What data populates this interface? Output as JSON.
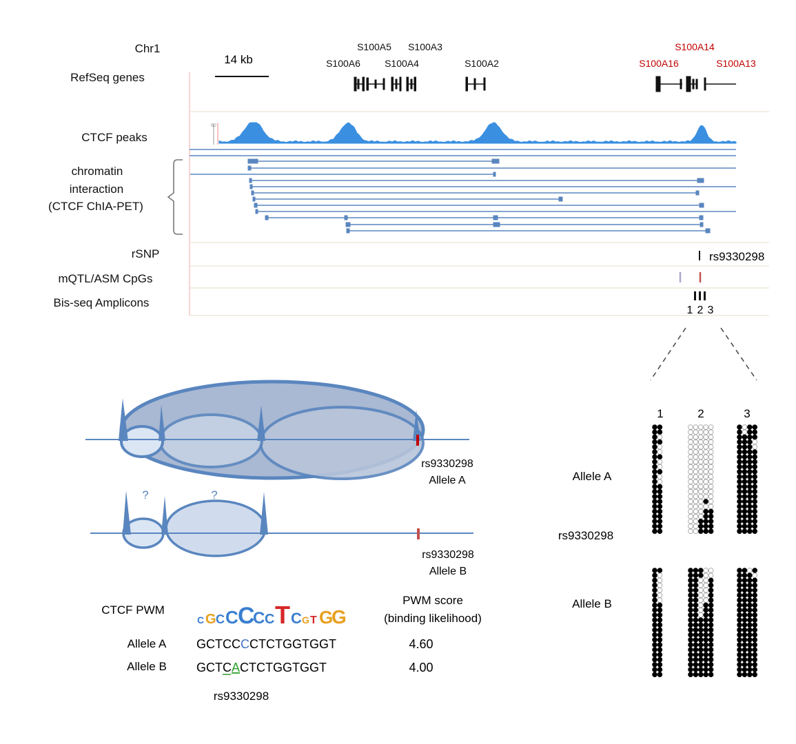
{
  "browser": {
    "chrom_label": "Chr1",
    "track_labels": {
      "refseq": "RefSeq genes",
      "ctcf": "CTCF peaks",
      "chia_line1": "chromatin",
      "chia_line2": "interaction",
      "chia_line3": "(CTCF ChIA-PET)",
      "rsnp": "rSNP",
      "mqtl": "mQTL/ASM CpGs",
      "bisseq": "Bis-seq Amplicons"
    },
    "scale_label": "14 kb",
    "genes": {
      "s100a5": "S100A5",
      "s100a3": "S100A3",
      "s100a6": "S100A6",
      "s100a4": "S100A4",
      "s100a2": "S100A2",
      "s100a14": "S100A14",
      "s100a16": "S100A16",
      "s100a13": "S100A13"
    },
    "rsnp_label": "rs9330298",
    "amplicon_numbers": [
      "1",
      "2",
      "3"
    ]
  },
  "model": {
    "allele_a_snp": "rs9330298",
    "allele_a_label": "Allele  A",
    "allele_b_snp": "rs9330298",
    "allele_b_label": "Allele  B",
    "question_marks": [
      "?",
      "?"
    ]
  },
  "pwm": {
    "title": "CTCF PWM",
    "logo": "CGCCCCCTCGTGG",
    "score_header_line1": "PWM score",
    "score_header_line2": "(binding likelihood)",
    "allele_a": {
      "label": "Allele A",
      "seq_pre": "GCTCC",
      "seq_var": "C",
      "seq_post": "CTCTGGTGGT",
      "score": "4.60"
    },
    "allele_b": {
      "label": "Allele B",
      "seq_pre": "GCTC",
      "seq_var": "A",
      "seq_post": "CTCTGGTGGT",
      "score": "4.00"
    },
    "snp_label": "rs9330298"
  },
  "methylation": {
    "columns": [
      "1",
      "2",
      "3"
    ],
    "allele_a_label": "Allele A",
    "snp_label": "rs9330298",
    "allele_b_label": "Allele B"
  },
  "colors": {
    "track_blue": "#3a8fe0",
    "arc_blue": "#5a86bf",
    "highlight_red": "#c00000",
    "snp_red": "#c0504d",
    "var_blue": "#4472c4",
    "var_green": "#2ca02c"
  }
}
